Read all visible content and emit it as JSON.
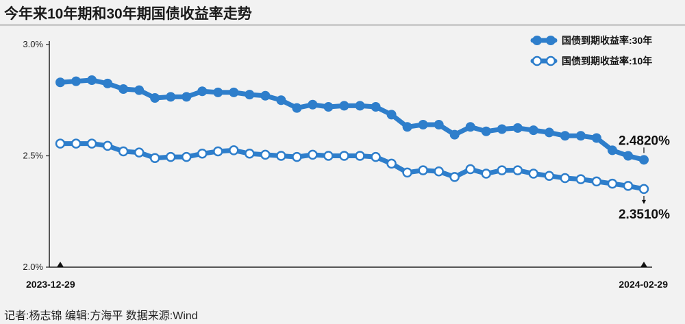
{
  "title": "今年来10年期和30年期国债收益率走势",
  "credit": "记者:杨志锦   编辑:方海平   数据来源:Wind",
  "colors": {
    "line": "#2e7ecb",
    "hollow_fill": "#ffffff",
    "background": "#f2f2f2"
  },
  "chart_data": {
    "type": "line",
    "title": "今年来10年期和30年期国债收益率走势",
    "ylim": [
      2.0,
      3.0
    ],
    "y_ticks": [
      "3.0%",
      "2.5%",
      "2.0%"
    ],
    "x_labels": [
      "2023-12-29",
      "2024-02-29"
    ],
    "legend_position": "top-right",
    "end_labels": {
      "s30": "2.4820%",
      "s10": "2.3510%"
    },
    "series": [
      {
        "name": "国债到期收益率:30年",
        "marker": "filled",
        "values": [
          2.83,
          2.835,
          2.84,
          2.825,
          2.8,
          2.795,
          2.76,
          2.765,
          2.765,
          2.79,
          2.785,
          2.785,
          2.775,
          2.77,
          2.75,
          2.715,
          2.73,
          2.72,
          2.725,
          2.725,
          2.72,
          2.685,
          2.63,
          2.64,
          2.64,
          2.595,
          2.63,
          2.61,
          2.62,
          2.625,
          2.615,
          2.605,
          2.59,
          2.59,
          2.58,
          2.525,
          2.5,
          2.482
        ]
      },
      {
        "name": "国债到期收益率:10年",
        "marker": "hollow",
        "values": [
          2.555,
          2.555,
          2.555,
          2.545,
          2.52,
          2.515,
          2.49,
          2.495,
          2.495,
          2.51,
          2.52,
          2.525,
          2.51,
          2.505,
          2.5,
          2.495,
          2.505,
          2.5,
          2.5,
          2.5,
          2.495,
          2.465,
          2.425,
          2.435,
          2.43,
          2.405,
          2.44,
          2.42,
          2.435,
          2.435,
          2.42,
          2.41,
          2.4,
          2.395,
          2.385,
          2.375,
          2.365,
          2.351
        ]
      }
    ]
  }
}
